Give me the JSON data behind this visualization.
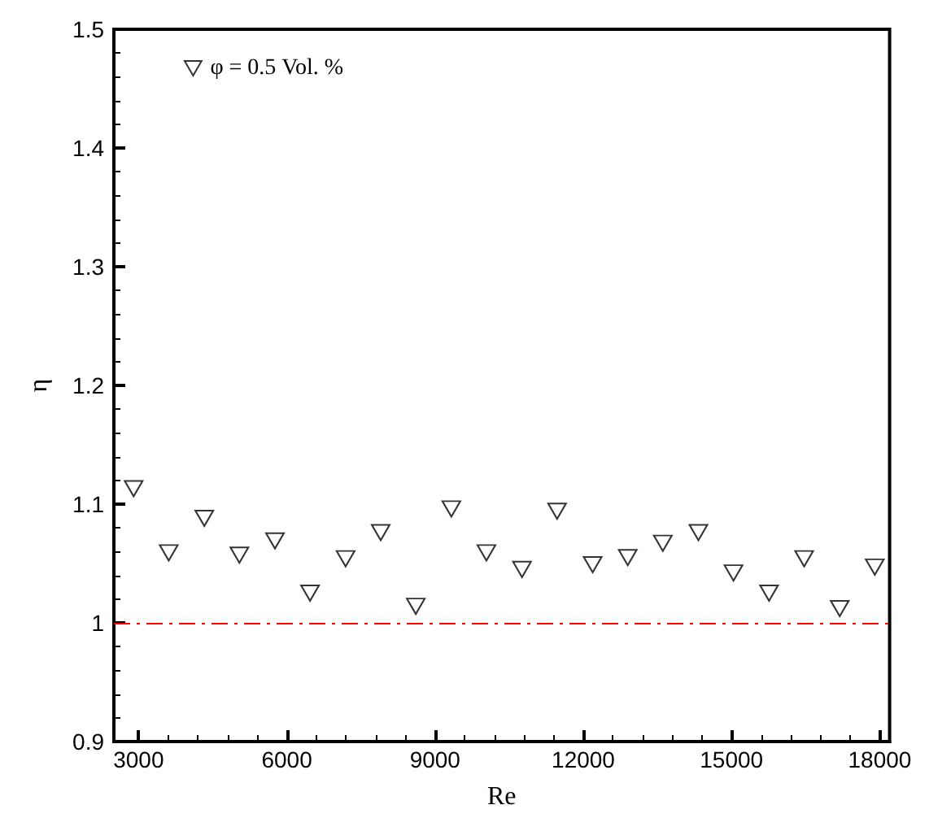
{
  "chart_data": {
    "type": "scatter",
    "xlabel": "Re",
    "ylabel": "η",
    "xlim": [
      2500,
      18200
    ],
    "xticks": [
      3000,
      6000,
      9000,
      12000,
      15000,
      18000
    ],
    "ylim": [
      0.9,
      1.5
    ],
    "yticks": [
      {
        "value": 0.9,
        "label": "0.9"
      },
      1,
      1.1,
      1.2,
      1.3,
      1.4,
      1.5
    ],
    "marker": "triangle",
    "legend": "top left",
    "grid": false,
    "series": [
      {
        "name": "φ = 0.5 Vol. %",
        "color": "#000000",
        "x": [
          2900,
          3610,
          4330,
          5040,
          5760,
          6470,
          7190,
          7900,
          8610,
          9330,
          10040,
          10760,
          11470,
          12190,
          12900,
          13610,
          14330,
          15040,
          15760,
          16470,
          17190,
          17900
        ],
        "values": [
          1.113,
          1.059,
          1.088,
          1.057,
          1.069,
          1.025,
          1.054,
          1.076,
          1.014,
          1.096,
          1.059,
          1.045,
          1.094,
          1.049,
          1.055,
          1.067,
          1.076,
          1.042,
          1.025,
          1.054,
          1.012,
          1.047
        ]
      }
    ],
    "ref_lines": [
      {
        "axis": "y",
        "value": 1,
        "color": "#ff0000",
        "line_style": "dashdot"
      }
    ]
  }
}
